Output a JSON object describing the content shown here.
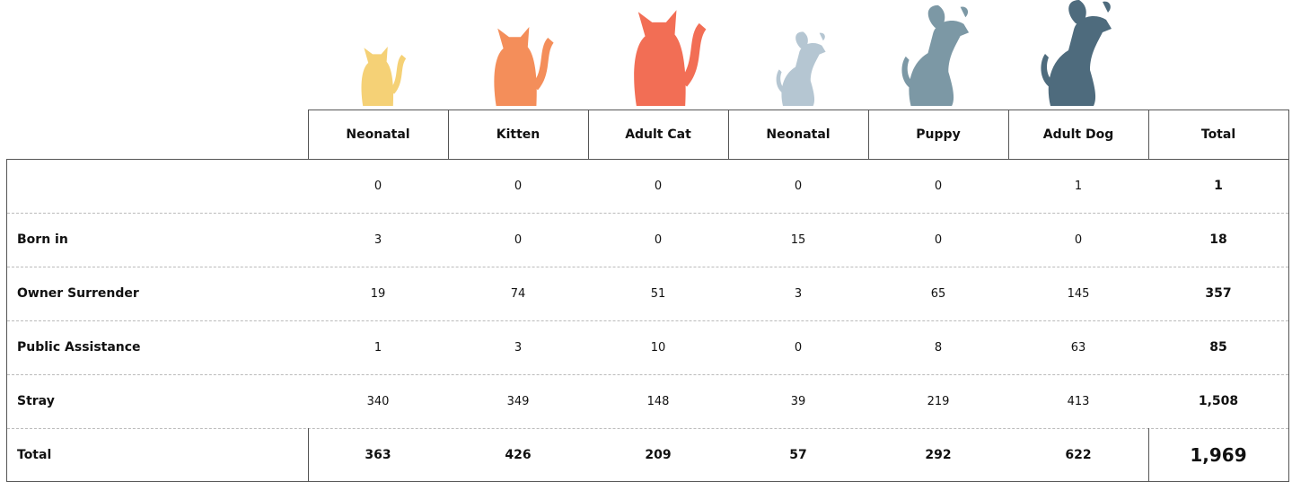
{
  "table": {
    "columns": [
      "Neonatal",
      "Kitten",
      "Adult Cat",
      "Neonatal",
      "Puppy",
      "Adult Dog",
      "Total"
    ],
    "rows": [
      {
        "label": null,
        "cells": [
          "0",
          "0",
          "0",
          "0",
          "0",
          "1",
          "1"
        ]
      },
      {
        "label": "Born in",
        "cells": [
          "3",
          "0",
          "0",
          "15",
          "0",
          "0",
          "18"
        ]
      },
      {
        "label": "Owner Surrender",
        "cells": [
          "19",
          "74",
          "51",
          "3",
          "65",
          "145",
          "357"
        ]
      },
      {
        "label": "Public Assistance",
        "cells": [
          "1",
          "3",
          "10",
          "0",
          "8",
          "63",
          "85"
        ]
      },
      {
        "label": "Stray",
        "cells": [
          "340",
          "349",
          "148",
          "39",
          "219",
          "413",
          "1,508"
        ]
      },
      {
        "label": "Total",
        "cells": [
          "363",
          "426",
          "209",
          "57",
          "292",
          "622",
          "1,969"
        ]
      }
    ]
  }
}
